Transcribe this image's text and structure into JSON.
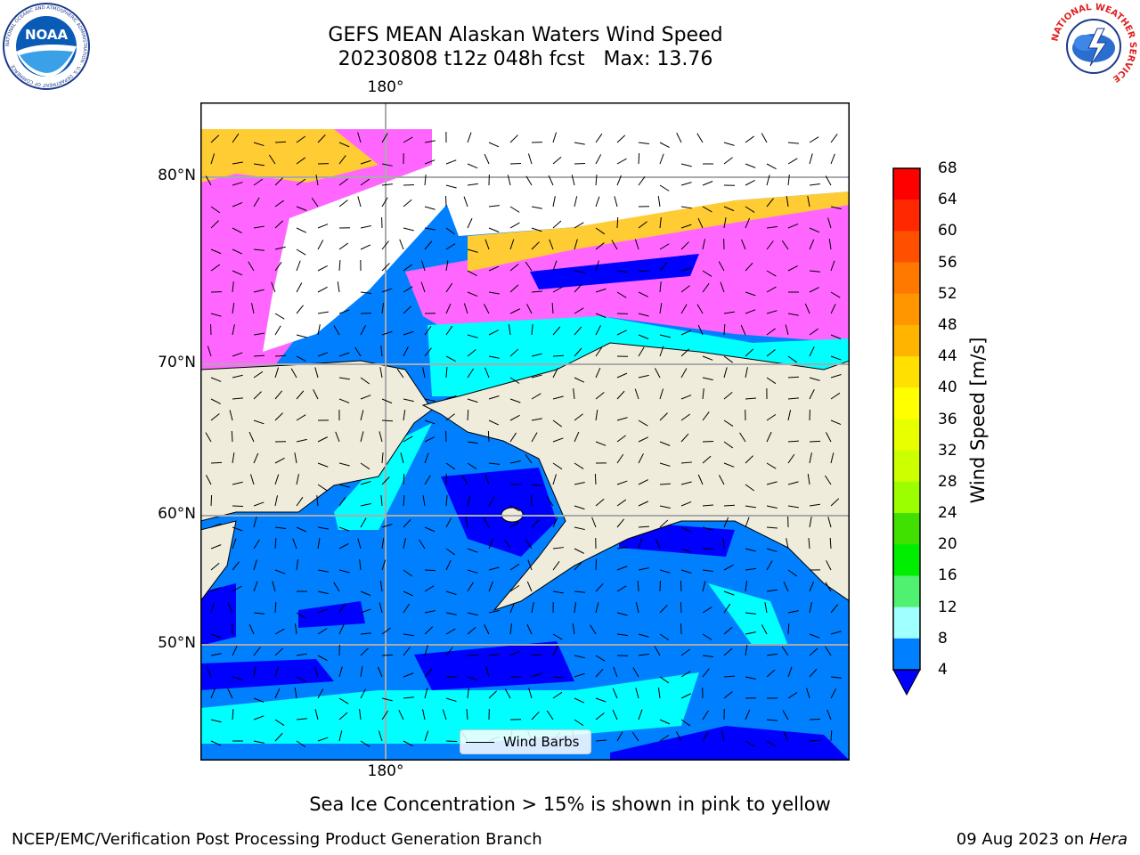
{
  "title": {
    "line1": "GEFS MEAN Alaskan Waters Wind Speed",
    "line2": "20230808 t12z 048h fcst   Max: 13.76"
  },
  "axes": {
    "lat_labels": [
      "80°N",
      "70°N",
      "60°N",
      "50°N"
    ],
    "lon_top": "180°",
    "lon_bottom": "180°"
  },
  "legend": {
    "label": "Wind Barbs"
  },
  "colorbar": {
    "label": "Wind Speed [m/s]",
    "ticks": [
      "68",
      "64",
      "60",
      "56",
      "52",
      "48",
      "44",
      "40",
      "36",
      "32",
      "28",
      "24",
      "20",
      "16",
      "12",
      "8",
      "4"
    ],
    "colors": [
      "#ff0000",
      "#ff2400",
      "#ff4a00",
      "#ff6e00",
      "#ff9200",
      "#ffb400",
      "#ffd800",
      "#fff800",
      "#e0ff00",
      "#c0ff00",
      "#a0ff00",
      "#40e000",
      "#00e000",
      "#50f070",
      "#a0ffff",
      "#50ffff",
      "#00ffff",
      "#0088ff",
      "#0000ff"
    ],
    "colors_order_note": ""
  },
  "colors": {
    "land": "#efecdc",
    "ocean_low": "#0080ff",
    "ocean_calm": "#0000ff",
    "ocean_mid": "#00ffff",
    "ice_pink": "#ff66ff",
    "ice_yellow": "#ffcc33",
    "grid": "#aaaaaa"
  },
  "subnote": "Sea Ice Concentration > 15% is shown in pink to yellow",
  "footer": {
    "left": "NCEP/EMC/Verification Post Processing Product Generation Branch",
    "right_date": "09 Aug 2023 on ",
    "right_host": "Hera"
  },
  "logos": {
    "noaa": "NOAA",
    "noaa_ring": "NATIONAL OCEANIC AND ATMOSPHERIC ADMINISTRATION · U.S. DEPARTMENT OF COMMERCE",
    "nws_ring": "NATIONAL WEATHER SERVICE"
  }
}
